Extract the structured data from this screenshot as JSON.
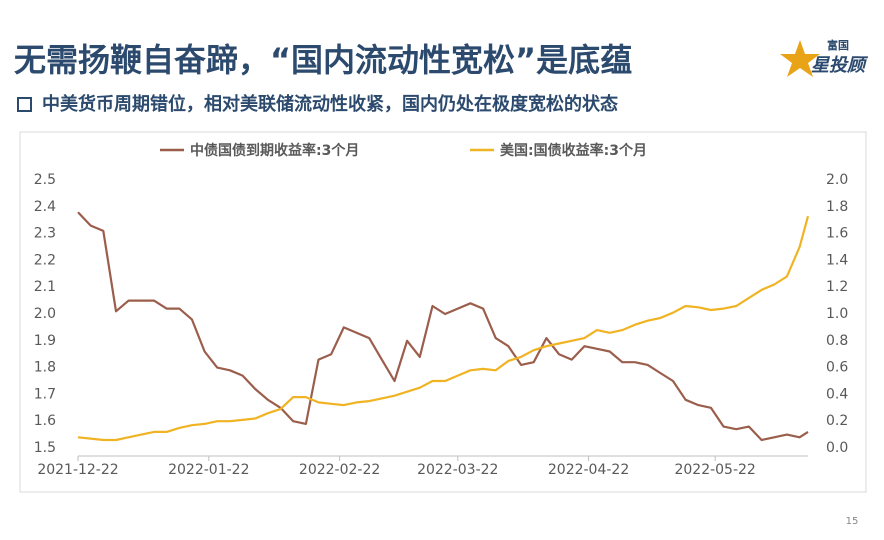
{
  "slide": {
    "title": "无需扬鞭自奋蹄，“国内流动性宽松”是底蕴",
    "subtitle": "中美货币周期错位，相对美联储流动性收紧，国内仍处在极度宽松的状态",
    "logo_top": "富国",
    "logo_main": "星投顾",
    "page_number": "15"
  },
  "chart_data": {
    "type": "line",
    "x": [
      "2021-12-22",
      "2021-12-25",
      "2021-12-28",
      "2021-12-31",
      "2022-01-03",
      "2022-01-06",
      "2022-01-09",
      "2022-01-12",
      "2022-01-15",
      "2022-01-18",
      "2022-01-21",
      "2022-01-24",
      "2022-01-27",
      "2022-01-30",
      "2022-02-02",
      "2022-02-05",
      "2022-02-08",
      "2022-02-11",
      "2022-02-14",
      "2022-02-17",
      "2022-02-20",
      "2022-02-23",
      "2022-02-26",
      "2022-03-01",
      "2022-03-04",
      "2022-03-07",
      "2022-03-10",
      "2022-03-13",
      "2022-03-16",
      "2022-03-19",
      "2022-03-22",
      "2022-03-25",
      "2022-03-28",
      "2022-03-31",
      "2022-04-03",
      "2022-04-06",
      "2022-04-09",
      "2022-04-12",
      "2022-04-15",
      "2022-04-18",
      "2022-04-21",
      "2022-04-24",
      "2022-04-27",
      "2022-04-30",
      "2022-05-03",
      "2022-05-06",
      "2022-05-09",
      "2022-05-12",
      "2022-05-15",
      "2022-05-18",
      "2022-05-21",
      "2022-05-24",
      "2022-05-27",
      "2022-05-30",
      "2022-06-02",
      "2022-06-05",
      "2022-06-08",
      "2022-06-11",
      "2022-06-13"
    ],
    "series": [
      {
        "name": "中债国债到期收益率:3个月",
        "color": "#9b5e4c",
        "values": [
          2.38,
          2.33,
          2.31,
          2.01,
          2.05,
          2.05,
          2.05,
          2.02,
          2.02,
          1.98,
          1.86,
          1.8,
          1.79,
          1.77,
          1.72,
          1.68,
          1.65,
          1.6,
          1.59,
          1.83,
          1.85,
          1.95,
          1.93,
          1.91,
          1.83,
          1.75,
          1.9,
          1.84,
          2.03,
          2.0,
          2.02,
          2.04,
          2.02,
          1.91,
          1.88,
          1.81,
          1.82,
          1.91,
          1.85,
          1.83,
          1.88,
          1.87,
          1.86,
          1.82,
          1.82,
          1.81,
          1.78,
          1.75,
          1.68,
          1.66,
          1.65,
          1.58,
          1.57,
          1.58,
          1.53,
          1.54,
          1.55,
          1.54,
          1.56
        ]
      },
      {
        "name": "美国:国债收益率:3个月",
        "color": "#f0b323",
        "axis": "y2",
        "values": [
          0.08,
          0.07,
          0.06,
          0.06,
          0.08,
          0.1,
          0.12,
          0.12,
          0.15,
          0.17,
          0.18,
          0.2,
          0.2,
          0.21,
          0.22,
          0.26,
          0.29,
          0.38,
          0.38,
          0.34,
          0.33,
          0.32,
          0.34,
          0.35,
          0.37,
          0.39,
          0.42,
          0.45,
          0.5,
          0.5,
          0.54,
          0.58,
          0.59,
          0.58,
          0.65,
          0.68,
          0.73,
          0.76,
          0.78,
          0.8,
          0.82,
          0.88,
          0.86,
          0.88,
          0.92,
          0.95,
          0.97,
          1.01,
          1.06,
          1.05,
          1.03,
          1.04,
          1.06,
          1.12,
          1.18,
          1.22,
          1.28,
          1.5,
          1.73
        ]
      }
    ],
    "xlim": [
      "2021-12-22",
      "2022-06-13"
    ],
    "xticks": [
      "2021-12-22",
      "2022-01-22",
      "2022-02-22",
      "2022-03-22",
      "2022-04-22",
      "2022-05-22"
    ],
    "ylim": [
      1.5,
      2.5
    ],
    "yticks": [
      1.5,
      1.6,
      1.7,
      1.8,
      1.9,
      {
        "value": 2.0,
        "label": "2.0"
      },
      2.1,
      2.2,
      2.3,
      2.4,
      2.5
    ],
    "y2lim": [
      0,
      2
    ],
    "y2ticks": [
      {
        "value": 0,
        "label": "0.0"
      },
      0.2,
      0.4,
      0.6,
      0.8,
      {
        "value": 1,
        "label": "1.0"
      },
      1.2,
      1.4,
      1.6,
      1.8,
      {
        "value": 2,
        "label": "2.0"
      }
    ],
    "grid": false,
    "legend": "top"
  }
}
